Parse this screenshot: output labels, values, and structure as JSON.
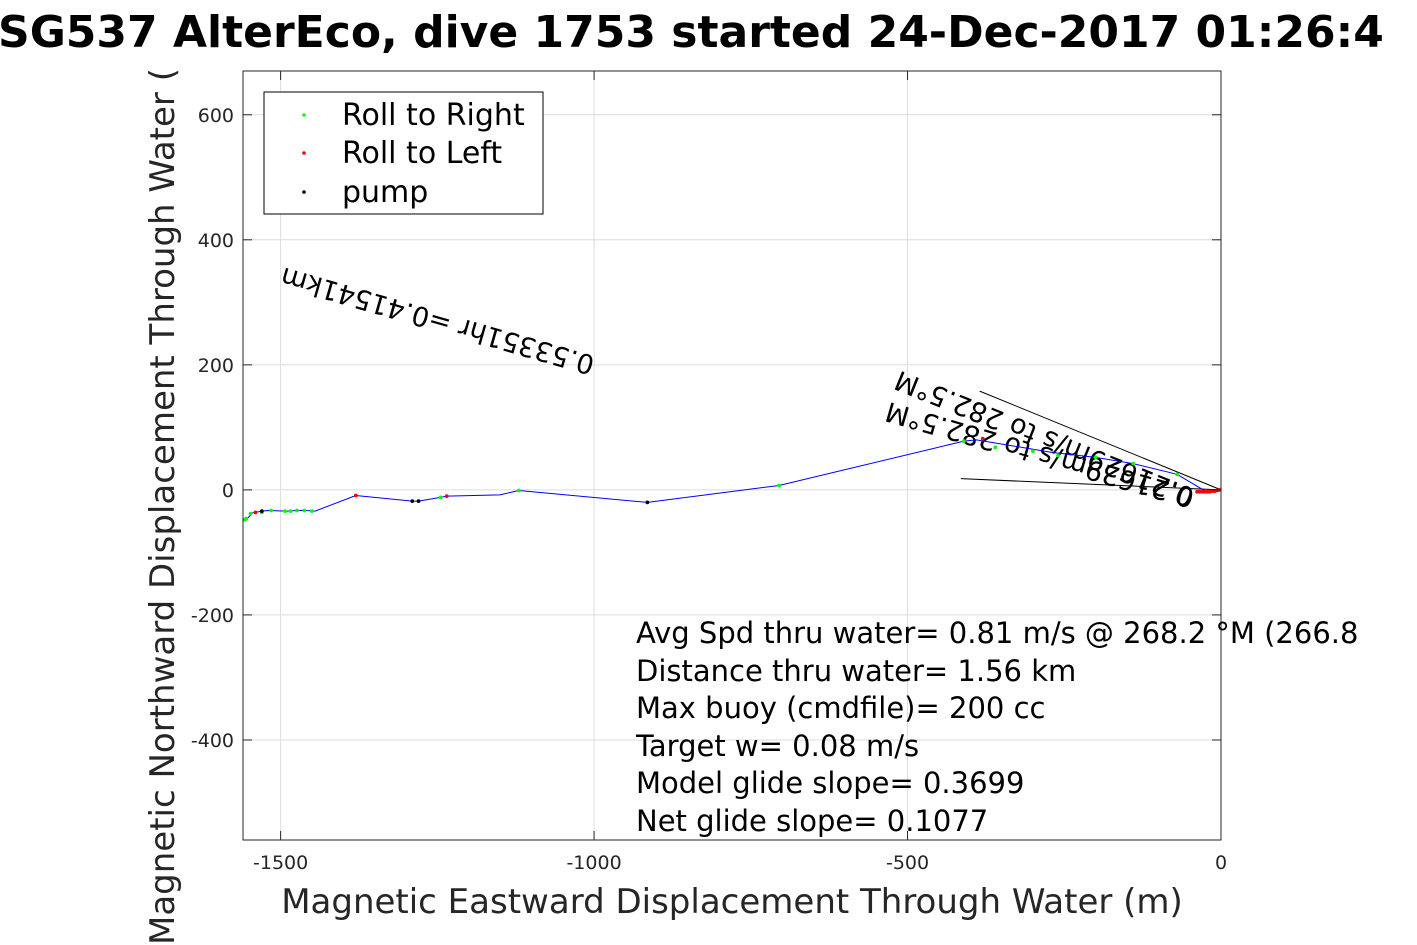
{
  "chart_data": {
    "type": "scatter",
    "title": "SG537 AlterEco, dive 1753 started 24-Dec-2017 01:26:4",
    "xlabel": "Magnetic Eastward Displacement Through Water (m)",
    "ylabel": "Magnetic Northward Displacement Through Water (",
    "xlim": [
      -1560,
      0
    ],
    "ylim": [
      -560,
      670
    ],
    "xticks": [
      -1500,
      -1000,
      -500,
      0
    ],
    "yticks": [
      -400,
      -200,
      0,
      200,
      400,
      600
    ],
    "grid": true,
    "legend_position": "top-left",
    "legend": [
      "Roll to Right",
      "Roll to Left",
      "pump"
    ],
    "colors": {
      "track": "#0000ff",
      "roll_right": "#00ff00",
      "roll_left": "#ff0000",
      "pump": "#000000",
      "grid": "#dcdcdc",
      "axis": "#262626"
    },
    "track": {
      "x": [
        0,
        -5,
        -15,
        -25,
        -70,
        -140,
        -200,
        -270,
        -330,
        -390,
        -410,
        -705,
        -915,
        -1120,
        -1150,
        -1235,
        -1245,
        -1280,
        -1290,
        -1380,
        -1445,
        -1460,
        -1475,
        -1490,
        -1520,
        -1530,
        -1545,
        -1555,
        -1558
      ],
      "y": [
        0,
        -2,
        -3,
        -2,
        25,
        42,
        52,
        60,
        70,
        80,
        78,
        7,
        -20,
        -1,
        -8,
        -10,
        -12,
        -18,
        -18,
        -9,
        -34,
        -33,
        -33,
        -34,
        -33,
        -34,
        -37,
        -48,
        -47
      ]
    },
    "series": [
      {
        "name": "Roll to Right",
        "x": [
          -70,
          -140,
          -200,
          -260,
          -300,
          -360,
          -410,
          -705,
          -1120,
          -1245,
          -1450,
          -1462,
          -1474,
          -1484,
          -1493,
          -1515,
          -1530,
          -1548,
          -1555,
          -1558
        ],
        "y": [
          25,
          42,
          52,
          55,
          62,
          68,
          78,
          7,
          -1,
          -12,
          -34,
          -33,
          -33,
          -34,
          -34,
          -33,
          -36,
          -38,
          -46,
          -48
        ]
      },
      {
        "name": "Roll to Left",
        "x": [
          -2,
          -6,
          -10,
          -14,
          -18,
          -22,
          -26,
          -30,
          -34,
          -38,
          -380,
          -1235,
          -1380,
          -1540
        ],
        "y": [
          0,
          -1,
          -2,
          -2,
          -3,
          -3,
          -3,
          -3,
          -3,
          -3,
          82,
          -10,
          -9,
          -36
        ]
      },
      {
        "name": "pump",
        "x": [
          -915,
          -1280,
          -1290,
          -1530
        ],
        "y": [
          -20,
          -18,
          -18,
          -34
        ]
      }
    ],
    "current_lines": [
      {
        "x": [
          0,
          -385
        ],
        "y": [
          0,
          158
        ]
      },
      {
        "x": [
          0,
          -415
        ],
        "y": [
          0,
          18
        ]
      }
    ],
    "annotations": [
      {
        "text": "0.21629m/s to 282.5°M",
        "x": -40,
        "y": 0,
        "rotation_deg": 202
      },
      {
        "text": "0.21629m/s to 282.5°M",
        "x": -40,
        "y": 0,
        "rotation_deg": 196
      },
      {
        "text": "0.53351hr =0.41541km",
        "x": -997,
        "y": 213,
        "rotation_deg": 196
      }
    ],
    "stats": [
      "Avg Spd thru water=  0.81 m/s @ 268.2 °M (266.8",
      "Distance thru water=  1.56 km",
      "Max buoy (cmdfile)= 200 cc",
      "Target w= 0.08 m/s",
      "Model glide slope= 0.3699",
      "Net glide slope= 0.1077"
    ]
  }
}
